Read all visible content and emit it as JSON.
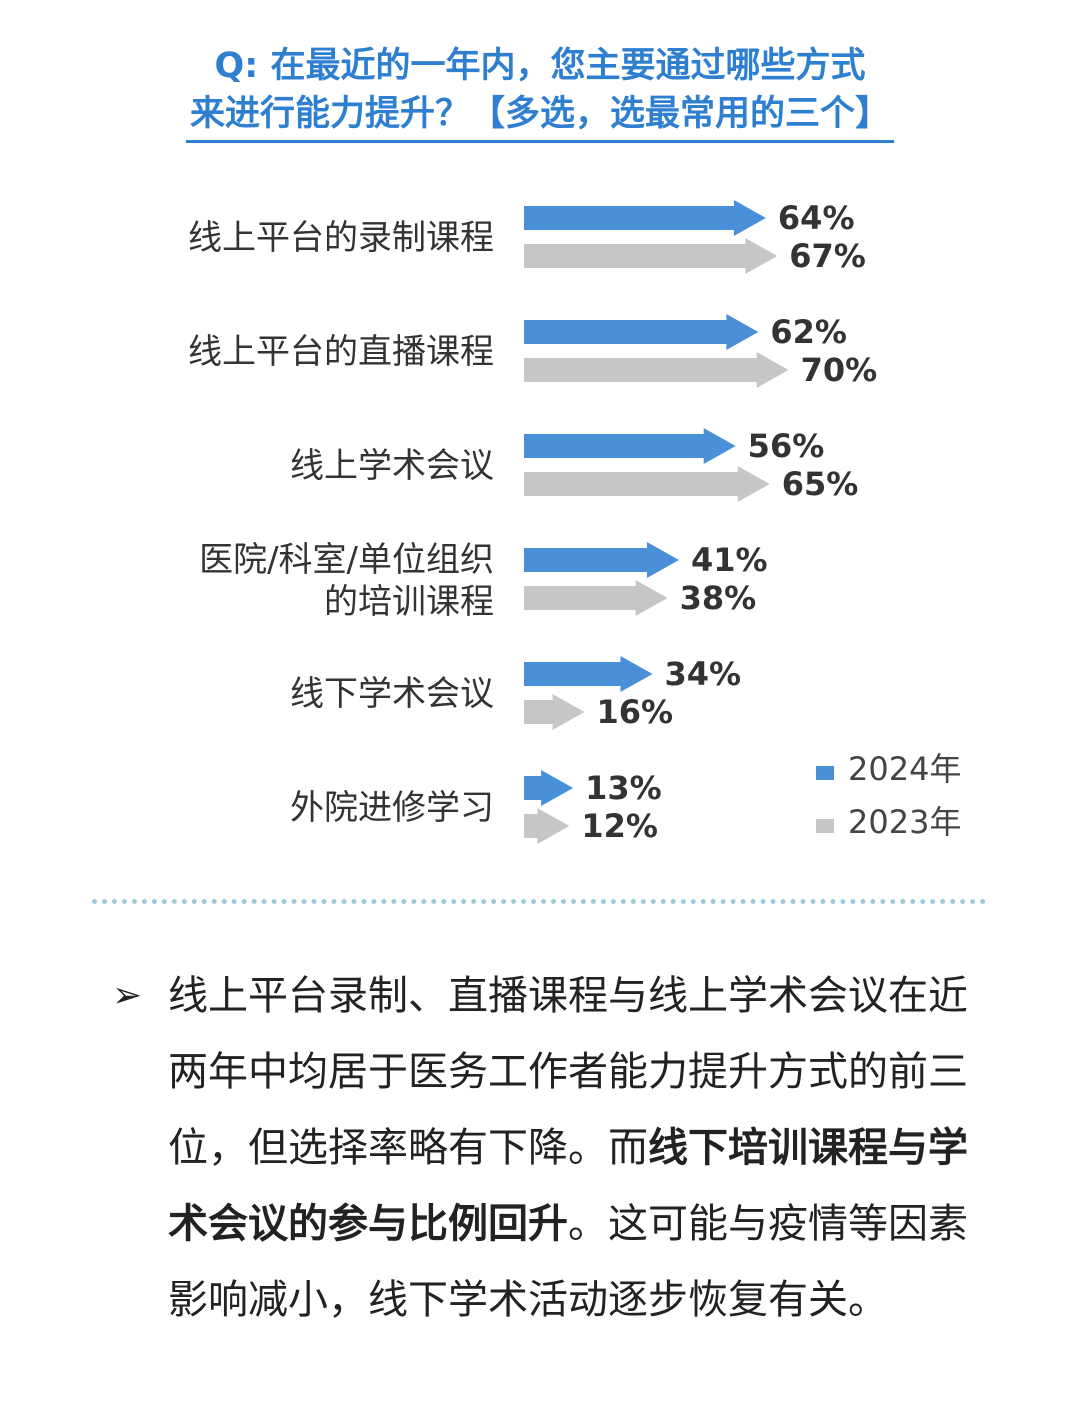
{
  "question": {
    "line1": "Q: 在最近的一年内，您主要通过哪些方式",
    "line2": "来进行能力提升？【多选，选最常用的三个】"
  },
  "chart_data": {
    "type": "bar",
    "orientation": "horizontal",
    "categories": [
      [
        "线上平台的录制课程"
      ],
      [
        "线上平台的直播课程"
      ],
      [
        "线上学术会议"
      ],
      [
        "医院/科室/单位组织",
        "的培训课程"
      ],
      [
        "线下学术会议"
      ],
      [
        "外院进修学习"
      ]
    ],
    "series": [
      {
        "name": "2024年",
        "color": "#4a90d9",
        "values": [
          64,
          62,
          56,
          41,
          34,
          13
        ],
        "labels": [
          "64%",
          "62%",
          "56%",
          "41%",
          "34%",
          "13%"
        ]
      },
      {
        "name": "2023年",
        "color": "#c6c6c6",
        "values": [
          67,
          70,
          65,
          38,
          16,
          12
        ],
        "labels": [
          "67%",
          "70%",
          "65%",
          "38%",
          "16%",
          "12%"
        ]
      }
    ],
    "value_unit": "%",
    "xlim": [
      0,
      100
    ],
    "grid": false,
    "legend_position": "bottom-right"
  },
  "summary": {
    "bullet": "➢",
    "part1": "线上平台录制、直播课程与线上学术会议在近两年中均居于医务工作者能力提升方式的前三位，但选择率略有下降。而",
    "bold": "线下培训课程与学术会议的参与比例回升",
    "part2": "。这可能与疫情等因素影响减小，线下学术活动逐步恢复有关。"
  }
}
